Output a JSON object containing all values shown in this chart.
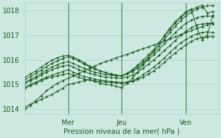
{
  "title": "",
  "xlabel": "Pression niveau de la mer( hPa )",
  "ylabel": "",
  "bg_color": "#cce8e0",
  "plot_bg_color": "#cce8e0",
  "grid_color": "#b0d0cc",
  "line_color": "#1a5c1a",
  "marker_color": "#1a5c1a",
  "ylim": [
    1013.8,
    1018.3
  ],
  "xlim": [
    0,
    108
  ],
  "xtick_positions": [
    24,
    54,
    90
  ],
  "xticklabels": [
    "Mer",
    "Jeu",
    "Ven"
  ],
  "yticks": [
    1014,
    1015,
    1016,
    1017,
    1018
  ],
  "series": [
    {
      "x": [
        0,
        3,
        6,
        9,
        12,
        15,
        18,
        21,
        24,
        27,
        30,
        33,
        36,
        39,
        42,
        45,
        48,
        51,
        54,
        57,
        60,
        63,
        66,
        69,
        72,
        75,
        78,
        81,
        84,
        87,
        90,
        93,
        96,
        99,
        102,
        105
      ],
      "y": [
        1014.0,
        1014.15,
        1014.35,
        1014.55,
        1014.75,
        1014.9,
        1015.05,
        1015.15,
        1015.25,
        1015.35,
        1015.45,
        1015.55,
        1015.65,
        1015.75,
        1015.85,
        1015.92,
        1016.0,
        1016.08,
        1016.15,
        1016.22,
        1016.3,
        1016.37,
        1016.45,
        1016.52,
        1016.6,
        1016.68,
        1016.76,
        1016.84,
        1016.93,
        1017.02,
        1017.1,
        1017.18,
        1017.26,
        1017.34,
        1017.42,
        1017.5
      ]
    },
    {
      "x": [
        0,
        3,
        6,
        9,
        12,
        15,
        18,
        21,
        24,
        27,
        30,
        33,
        36,
        39,
        42,
        45,
        48,
        51,
        54,
        57,
        60,
        63,
        66,
        69,
        72,
        75,
        78,
        81,
        84,
        87,
        90,
        93,
        96,
        99,
        102,
        105
      ],
      "y": [
        1014.85,
        1014.95,
        1015.05,
        1015.15,
        1015.25,
        1015.3,
        1015.35,
        1015.4,
        1015.45,
        1015.38,
        1015.3,
        1015.22,
        1015.18,
        1015.15,
        1015.12,
        1015.1,
        1015.08,
        1015.06,
        1015.05,
        1015.08,
        1015.12,
        1015.2,
        1015.3,
        1015.42,
        1015.55,
        1015.72,
        1015.9,
        1016.1,
        1016.28,
        1016.45,
        1016.6,
        1016.75,
        1016.85,
        1016.9,
        1016.92,
        1016.95
      ]
    },
    {
      "x": [
        0,
        3,
        6,
        9,
        12,
        15,
        18,
        21,
        24,
        27,
        30,
        33,
        36,
        39,
        42,
        45,
        48,
        51,
        54,
        57,
        60,
        63,
        66,
        69,
        72,
        75,
        78,
        81,
        84,
        87,
        90,
        93,
        96,
        99,
        102,
        105
      ],
      "y": [
        1014.9,
        1015.0,
        1015.1,
        1015.2,
        1015.3,
        1015.38,
        1015.45,
        1015.52,
        1015.6,
        1015.5,
        1015.4,
        1015.32,
        1015.27,
        1015.22,
        1015.18,
        1015.15,
        1015.12,
        1015.1,
        1015.08,
        1015.1,
        1015.15,
        1015.25,
        1015.4,
        1015.55,
        1015.7,
        1015.88,
        1016.08,
        1016.3,
        1016.5,
        1016.68,
        1016.82,
        1016.95,
        1017.05,
        1017.1,
        1017.12,
        1017.1
      ]
    },
    {
      "x": [
        0,
        3,
        6,
        9,
        12,
        15,
        18,
        21,
        24,
        27,
        30,
        33,
        36,
        39,
        42,
        45,
        48,
        51,
        54,
        57,
        60,
        63,
        66,
        69,
        72,
        75,
        78,
        81,
        84,
        87,
        90,
        93,
        96,
        99,
        102,
        105
      ],
      "y": [
        1015.05,
        1015.15,
        1015.25,
        1015.38,
        1015.5,
        1015.6,
        1015.68,
        1015.75,
        1015.78,
        1015.7,
        1015.6,
        1015.52,
        1015.45,
        1015.4,
        1015.35,
        1015.3,
        1015.28,
        1015.27,
        1015.25,
        1015.3,
        1015.38,
        1015.5,
        1015.65,
        1015.82,
        1016.0,
        1016.18,
        1016.38,
        1016.58,
        1016.78,
        1016.98,
        1017.15,
        1017.3,
        1017.4,
        1017.45,
        1017.48,
        1017.45
      ]
    },
    {
      "x": [
        0,
        3,
        6,
        9,
        12,
        15,
        18,
        21,
        24,
        27,
        30,
        33,
        36,
        39,
        42,
        45,
        48,
        51,
        54,
        57,
        60,
        63,
        66,
        69,
        72,
        75,
        78,
        81,
        84,
        87,
        90,
        93,
        96,
        99,
        102,
        105
      ],
      "y": [
        1015.1,
        1015.2,
        1015.32,
        1015.45,
        1015.58,
        1015.7,
        1015.8,
        1015.88,
        1015.92,
        1015.85,
        1015.75,
        1015.65,
        1015.57,
        1015.5,
        1015.45,
        1015.4,
        1015.38,
        1015.35,
        1015.35,
        1015.42,
        1015.52,
        1015.65,
        1015.82,
        1016.0,
        1016.2,
        1016.42,
        1016.65,
        1016.88,
        1017.1,
        1017.3,
        1017.48,
        1017.6,
        1017.7,
        1017.75,
        1017.78,
        1017.75
      ]
    },
    {
      "x": [
        0,
        3,
        6,
        9,
        12,
        15,
        18,
        21,
        24,
        27,
        30,
        33,
        36,
        39,
        42,
        45,
        48,
        51,
        54,
        57,
        60,
        63,
        66,
        69,
        72,
        75,
        78,
        81,
        84,
        87,
        90,
        93,
        96,
        99,
        102,
        105
      ],
      "y": [
        1015.2,
        1015.32,
        1015.45,
        1015.58,
        1015.72,
        1015.85,
        1015.95,
        1016.05,
        1016.12,
        1016.05,
        1015.95,
        1015.82,
        1015.72,
        1015.62,
        1015.55,
        1015.48,
        1015.42,
        1015.38,
        1015.35,
        1015.45,
        1015.58,
        1015.72,
        1015.9,
        1016.1,
        1016.3,
        1016.55,
        1016.82,
        1017.1,
        1017.35,
        1017.58,
        1017.78,
        1017.92,
        1018.05,
        1018.12,
        1018.18,
        1018.2
      ]
    },
    {
      "x": [
        0,
        3,
        6,
        9,
        12,
        15,
        18,
        21,
        24,
        27,
        30,
        33,
        36,
        39,
        42,
        45,
        48,
        51,
        54,
        57,
        60,
        63,
        66,
        69,
        72,
        75,
        78,
        81,
        84,
        87,
        90,
        93,
        96,
        99,
        102,
        105
      ],
      "y": [
        1014.1,
        1014.2,
        1014.3,
        1014.4,
        1014.5,
        1014.6,
        1014.72,
        1014.85,
        1015.0,
        1015.05,
        1015.1,
        1015.15,
        1015.2,
        1015.12,
        1015.05,
        1015.0,
        1014.98,
        1014.92,
        1014.88,
        1015.05,
        1015.25,
        1015.5,
        1015.8,
        1016.08,
        1016.38,
        1016.68,
        1016.98,
        1017.28,
        1017.55,
        1017.75,
        1017.95,
        1018.05,
        1017.3,
        1016.8,
        1017.0,
        1017.8
      ]
    },
    {
      "x": [
        0,
        3,
        6,
        9,
        12,
        15,
        18,
        21,
        24,
        27,
        30,
        33,
        36,
        39,
        42,
        45,
        48,
        51,
        54,
        57,
        60,
        63,
        66,
        69,
        72,
        75,
        78,
        81,
        84,
        87,
        90,
        93,
        96,
        99,
        102,
        105
      ],
      "y": [
        1015.3,
        1015.42,
        1015.55,
        1015.7,
        1015.85,
        1015.98,
        1016.08,
        1016.15,
        1016.18,
        1016.1,
        1016.0,
        1015.88,
        1015.75,
        1015.65,
        1015.55,
        1015.48,
        1015.42,
        1015.38,
        1015.35,
        1015.45,
        1015.6,
        1015.78,
        1015.98,
        1016.2,
        1016.42,
        1016.68,
        1016.95,
        1017.22,
        1017.48,
        1017.7,
        1017.88,
        1018.02,
        1018.12,
        1018.2,
        1017.88,
        1017.95
      ]
    }
  ]
}
